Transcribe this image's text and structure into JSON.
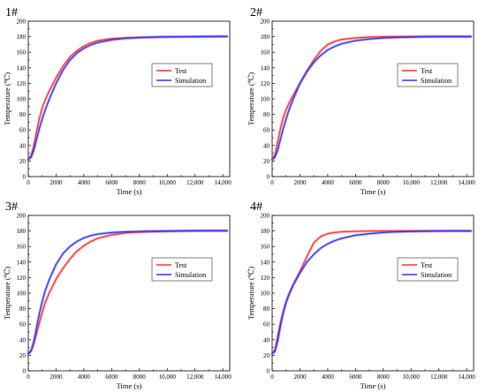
{
  "chart_data": [
    {
      "type": "line",
      "panel_label": "1#",
      "xlabel": "Time (s)",
      "ylabel": "Temperature (℃)",
      "xlim": [
        0,
        14500
      ],
      "ylim": [
        0,
        200
      ],
      "xticks": [
        0,
        2000,
        4000,
        6000,
        8000,
        10000,
        12000,
        14000
      ],
      "xtick_labels": [
        "0",
        "2000",
        "4000",
        "6000",
        "8000",
        "10,000",
        "12,000",
        "14,000"
      ],
      "yticks": [
        0,
        20,
        40,
        60,
        80,
        100,
        120,
        140,
        160,
        180,
        200
      ],
      "ytick_labels": [
        "0",
        "20",
        "40",
        "60",
        "80",
        "100",
        "120",
        "140",
        "160",
        "180",
        "200"
      ],
      "legend_position": "center-right",
      "x": [
        0,
        200,
        400,
        600,
        800,
        1000,
        1200,
        1500,
        2000,
        2500,
        3000,
        3500,
        4000,
        4500,
        5000,
        6000,
        7000,
        8000,
        9000,
        10000,
        11000,
        12000,
        13000,
        14000,
        14300
      ],
      "series": [
        {
          "name": "Test",
          "color": "#ff3333",
          "values": [
            22,
            27,
            40,
            58,
            75,
            88,
            98,
            110,
            127,
            142,
            154,
            162,
            168,
            172,
            175,
            177.5,
            178.5,
            179,
            179.5,
            179.8,
            180,
            180,
            180,
            180.2,
            180.2
          ]
        },
        {
          "name": "Simulation",
          "color": "#3333ff",
          "values": [
            22,
            25,
            34,
            48,
            62,
            74,
            85,
            99,
            120,
            137,
            150,
            159,
            165,
            169.5,
            172.5,
            176,
            178,
            179,
            179.5,
            179.8,
            180,
            180.2,
            180.4,
            180.5,
            180.5
          ]
        }
      ]
    },
    {
      "type": "line",
      "panel_label": "2#",
      "xlabel": "Time (s)",
      "ylabel": "Temperature (℃)",
      "xlim": [
        0,
        14500
      ],
      "ylim": [
        0,
        200
      ],
      "xticks": [
        0,
        2000,
        4000,
        6000,
        8000,
        10000,
        12000,
        14000
      ],
      "xtick_labels": [
        "0",
        "2000",
        "4000",
        "6000",
        "8000",
        "10,000",
        "12,000",
        "14,000"
      ],
      "yticks": [
        0,
        20,
        40,
        60,
        80,
        100,
        120,
        140,
        160,
        180,
        200
      ],
      "ytick_labels": [
        "0",
        "20",
        "40",
        "60",
        "80",
        "100",
        "120",
        "140",
        "160",
        "180",
        "200"
      ],
      "legend_position": "center-right",
      "x": [
        0,
        200,
        400,
        600,
        800,
        1000,
        1200,
        1500,
        2000,
        2500,
        3000,
        3500,
        4000,
        4500,
        5000,
        6000,
        7000,
        8000,
        9000,
        10000,
        11000,
        12000,
        13000,
        14000,
        14300
      ],
      "series": [
        {
          "name": "Test",
          "color": "#ff3333",
          "values": [
            22,
            28,
            45,
            62,
            76,
            86,
            94,
            104,
            120,
            136,
            150,
            162,
            170,
            174,
            176.5,
            178.5,
            179.5,
            180,
            180.2,
            180.4,
            180.5,
            180.5,
            180.5,
            180.5,
            180.5
          ]
        },
        {
          "name": "Simulation",
          "color": "#3333ff",
          "values": [
            22,
            25,
            34,
            48,
            62,
            74,
            85,
            99,
            120,
            135,
            147,
            156,
            163,
            167.5,
            171,
            175,
            177,
            178.5,
            179,
            179.5,
            179.8,
            180,
            180,
            180,
            180
          ]
        }
      ]
    },
    {
      "type": "line",
      "panel_label": "3#",
      "xlabel": "Time (s)",
      "ylabel": "Temperature (℃)",
      "xlim": [
        0,
        14500
      ],
      "ylim": [
        0,
        200
      ],
      "xticks": [
        0,
        2000,
        4000,
        6000,
        8000,
        10000,
        12000,
        14000
      ],
      "xtick_labels": [
        "0",
        "2000",
        "4000",
        "6000",
        "8000",
        "10,000",
        "12,000",
        "14,000"
      ],
      "yticks": [
        0,
        20,
        40,
        60,
        80,
        100,
        120,
        140,
        160,
        180,
        200
      ],
      "ytick_labels": [
        "0",
        "20",
        "40",
        "60",
        "80",
        "100",
        "120",
        "140",
        "160",
        "180",
        "200"
      ],
      "legend_position": "center-right",
      "x": [
        0,
        200,
        400,
        600,
        800,
        1000,
        1200,
        1500,
        2000,
        2500,
        3000,
        3500,
        4000,
        4500,
        5000,
        6000,
        7000,
        8000,
        9000,
        10000,
        11000,
        12000,
        13000,
        14000,
        14300
      ],
      "series": [
        {
          "name": "Test",
          "color": "#ff3333",
          "values": [
            22,
            26,
            35,
            48,
            62,
            75,
            87,
            100,
            118,
            132,
            144,
            154,
            161,
            166.5,
            170.5,
            175,
            177.5,
            178.5,
            179,
            179.5,
            179.8,
            180,
            180,
            180,
            180
          ]
        },
        {
          "name": "Simulation",
          "color": "#3333ff",
          "values": [
            22,
            25,
            38,
            56,
            74,
            89,
            102,
            117,
            137,
            151,
            160,
            166.5,
            171,
            174,
            176,
            178,
            179,
            179.5,
            179.8,
            180,
            180.2,
            180.4,
            180.5,
            180.5,
            180.5
          ]
        }
      ]
    },
    {
      "type": "line",
      "panel_label": "4#",
      "xlabel": "Time (s)",
      "ylabel": "Temperature (℃)",
      "xlim": [
        0,
        14500
      ],
      "ylim": [
        0,
        200
      ],
      "xticks": [
        0,
        2000,
        4000,
        6000,
        8000,
        10000,
        12000,
        14000
      ],
      "xtick_labels": [
        "0",
        "2000",
        "4000",
        "6000",
        "8000",
        "10,000",
        "12,000",
        "14,000"
      ],
      "yticks": [
        0,
        20,
        40,
        60,
        80,
        100,
        120,
        140,
        160,
        180,
        200
      ],
      "ytick_labels": [
        "0",
        "20",
        "40",
        "60",
        "80",
        "100",
        "120",
        "140",
        "160",
        "180",
        "200"
      ],
      "legend_position": "center-right",
      "x": [
        0,
        200,
        400,
        600,
        800,
        1000,
        1200,
        1500,
        2000,
        2500,
        3000,
        3500,
        4000,
        4500,
        5000,
        6000,
        7000,
        8000,
        9000,
        10000,
        11000,
        12000,
        13000,
        14000,
        14300
      ],
      "series": [
        {
          "name": "Test",
          "color": "#ff3333",
          "values": [
            22,
            27,
            45,
            62,
            76,
            88,
            98,
            110,
            128,
            147,
            165,
            173,
            176.5,
            178,
            179,
            179.5,
            180,
            180,
            180,
            180.2,
            180.2,
            180.2,
            180.2,
            180.2,
            180.2
          ]
        },
        {
          "name": "Simulation",
          "color": "#3333ff",
          "values": [
            22,
            25,
            38,
            58,
            75,
            88,
            98,
            110,
            126,
            140,
            150,
            158,
            163.5,
            167.5,
            170.5,
            174.5,
            176.5,
            178,
            178.8,
            179.3,
            179.6,
            179.8,
            180,
            180,
            180
          ]
        }
      ]
    }
  ]
}
